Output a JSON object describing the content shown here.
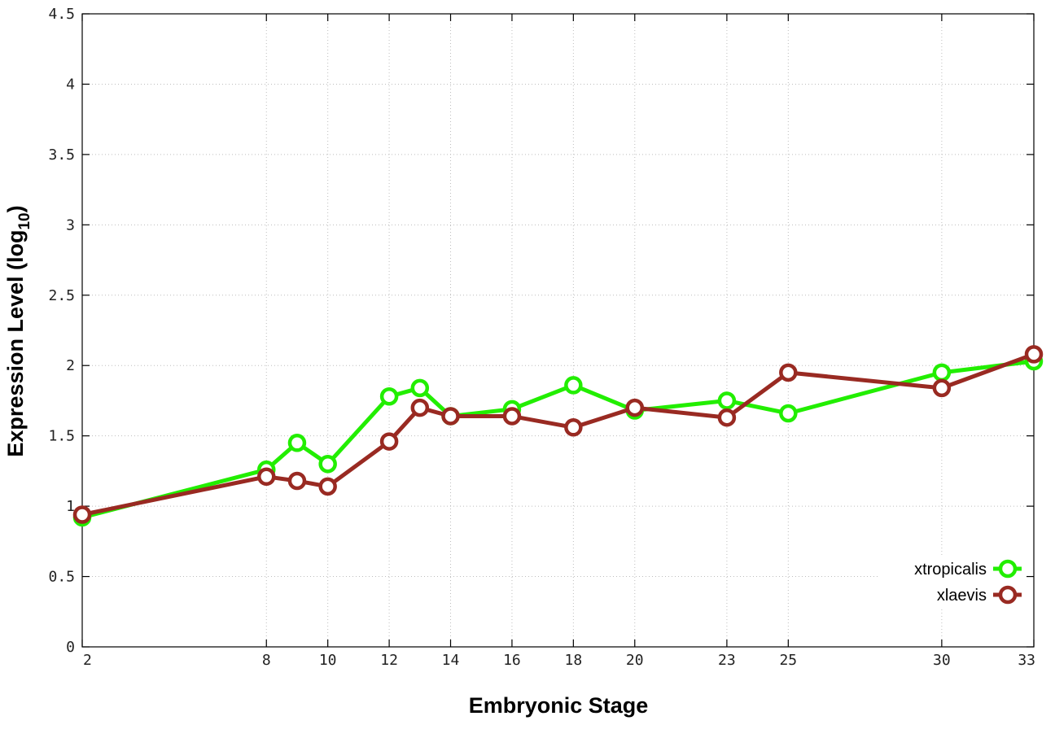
{
  "chart_data": {
    "type": "line",
    "xlabel": "Embryonic Stage",
    "ylabel": "Expression Level (log",
    "ylabel_sub": "10",
    "ylabel_close": ")",
    "xlim": [
      2,
      33
    ],
    "ylim": [
      0,
      4.5
    ],
    "xticks": [
      2,
      8,
      10,
      12,
      14,
      16,
      18,
      20,
      23,
      25,
      30,
      33
    ],
    "yticks": [
      0,
      0.5,
      1,
      1.5,
      2,
      2.5,
      3,
      3.5,
      4,
      4.5
    ],
    "ytick_labels": [
      "0",
      "0.5",
      "1",
      "1.5",
      "2",
      "2.5",
      "3",
      "3.5",
      "4",
      "4.5"
    ],
    "grid": true,
    "legend": "bottom-right",
    "series": [
      {
        "name": "xtropicalis",
        "color": "#22ee00",
        "x": [
          2,
          8,
          9,
          10,
          12,
          13,
          14,
          16,
          18,
          20,
          23,
          25,
          30,
          33
        ],
        "y": [
          0.92,
          1.26,
          1.45,
          1.3,
          1.78,
          1.84,
          1.64,
          1.69,
          1.86,
          1.68,
          1.75,
          1.66,
          1.95,
          2.03
        ]
      },
      {
        "name": "xlaevis",
        "color": "#992a22",
        "x": [
          2,
          8,
          9,
          10,
          12,
          13,
          14,
          16,
          18,
          20,
          23,
          25,
          30,
          33
        ],
        "y": [
          0.94,
          1.21,
          1.18,
          1.14,
          1.46,
          1.7,
          1.64,
          1.64,
          1.56,
          1.7,
          1.63,
          1.95,
          1.84,
          2.08
        ]
      }
    ]
  }
}
